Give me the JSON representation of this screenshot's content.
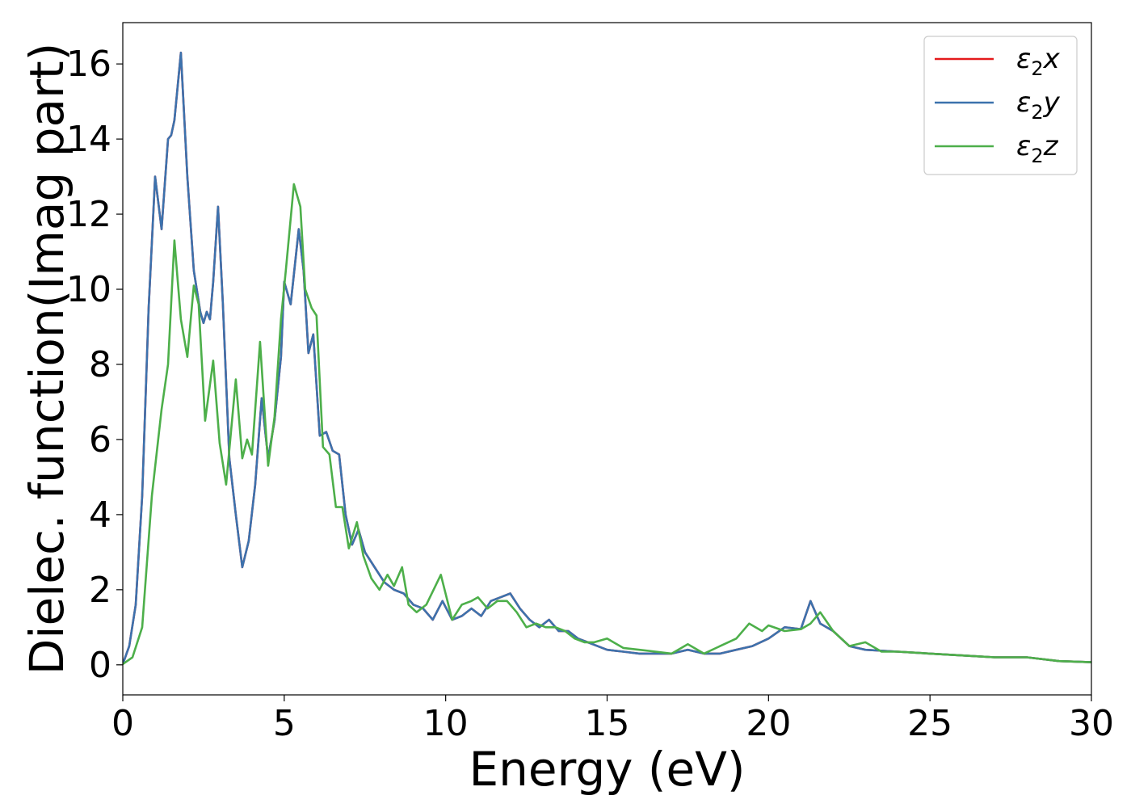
{
  "chart_data": {
    "type": "line",
    "xlabel": "Energy (eV)",
    "ylabel": "Dielec. function(Imag part)",
    "xlim": [
      0,
      30
    ],
    "ylim": [
      -0.8,
      17.1
    ],
    "xticks": [
      0,
      5,
      10,
      15,
      20,
      25,
      30
    ],
    "yticks": [
      0,
      2,
      4,
      6,
      8,
      10,
      12,
      14,
      16
    ],
    "grid": false,
    "legend_position": "top-right",
    "series": [
      {
        "name": "ε2x",
        "legend_symbol": "ε",
        "legend_sub": "2",
        "legend_var": "x",
        "color": "#e41a1c",
        "x": [
          0,
          0.2,
          0.4,
          0.6,
          0.8,
          1.0,
          1.2,
          1.4,
          1.5,
          1.6,
          1.8,
          2.0,
          2.2,
          2.4,
          2.5,
          2.6,
          2.7,
          2.8,
          2.95,
          3.1,
          3.3,
          3.5,
          3.7,
          3.9,
          4.1,
          4.3,
          4.5,
          4.7,
          4.9,
          5.0,
          5.2,
          5.45,
          5.6,
          5.75,
          5.9,
          6.1,
          6.3,
          6.5,
          6.7,
          6.9,
          7.1,
          7.3,
          7.5,
          7.8,
          8.1,
          8.4,
          8.7,
          9.0,
          9.3,
          9.6,
          9.9,
          10.2,
          10.5,
          10.8,
          11.1,
          11.4,
          11.7,
          12.0,
          12.3,
          12.6,
          12.9,
          13.2,
          13.5,
          13.8,
          14.1,
          14.4,
          14.7,
          15.0,
          15.5,
          16.0,
          16.5,
          17.0,
          17.5,
          18.0,
          18.5,
          19.0,
          19.5,
          20.0,
          20.5,
          21.0,
          21.3,
          21.6,
          22.0,
          22.5,
          23.0,
          24.0,
          25.0,
          26.0,
          27.0,
          28.0,
          29.0,
          30.0
        ],
        "y": [
          0.02,
          0.5,
          1.6,
          4.5,
          9.5,
          13.0,
          11.6,
          14.0,
          14.1,
          14.5,
          16.3,
          13.0,
          10.5,
          9.4,
          9.1,
          9.4,
          9.2,
          10.2,
          12.2,
          9.6,
          5.5,
          4.0,
          2.6,
          3.3,
          4.8,
          7.1,
          5.5,
          6.5,
          8.2,
          10.2,
          9.6,
          11.6,
          10.5,
          8.3,
          8.8,
          6.1,
          6.2,
          5.7,
          5.6,
          4.0,
          3.2,
          3.6,
          3.0,
          2.6,
          2.2,
          2.0,
          1.9,
          1.6,
          1.5,
          1.2,
          1.7,
          1.2,
          1.3,
          1.5,
          1.3,
          1.7,
          1.8,
          1.9,
          1.5,
          1.2,
          1.0,
          1.2,
          0.9,
          0.9,
          0.7,
          0.6,
          0.5,
          0.4,
          0.35,
          0.3,
          0.3,
          0.3,
          0.4,
          0.3,
          0.3,
          0.4,
          0.5,
          0.7,
          1.0,
          0.95,
          1.7,
          1.1,
          0.9,
          0.5,
          0.4,
          0.35,
          0.3,
          0.25,
          0.2,
          0.2,
          0.1,
          0.07
        ]
      },
      {
        "name": "ε2y",
        "legend_symbol": "ε",
        "legend_sub": "2",
        "legend_var": "y",
        "color": "#3c72ad",
        "x": [
          0,
          0.2,
          0.4,
          0.6,
          0.8,
          1.0,
          1.2,
          1.4,
          1.5,
          1.6,
          1.8,
          2.0,
          2.2,
          2.4,
          2.5,
          2.6,
          2.7,
          2.8,
          2.95,
          3.1,
          3.3,
          3.5,
          3.7,
          3.9,
          4.1,
          4.3,
          4.5,
          4.7,
          4.9,
          5.0,
          5.2,
          5.45,
          5.6,
          5.75,
          5.9,
          6.1,
          6.3,
          6.5,
          6.7,
          6.9,
          7.1,
          7.3,
          7.5,
          7.8,
          8.1,
          8.4,
          8.7,
          9.0,
          9.3,
          9.6,
          9.9,
          10.2,
          10.5,
          10.8,
          11.1,
          11.4,
          11.7,
          12.0,
          12.3,
          12.6,
          12.9,
          13.2,
          13.5,
          13.8,
          14.1,
          14.4,
          14.7,
          15.0,
          15.5,
          16.0,
          16.5,
          17.0,
          17.5,
          18.0,
          18.5,
          19.0,
          19.5,
          20.0,
          20.5,
          21.0,
          21.3,
          21.6,
          22.0,
          22.5,
          23.0,
          24.0,
          25.0,
          26.0,
          27.0,
          28.0,
          29.0,
          30.0
        ],
        "y": [
          0.02,
          0.5,
          1.6,
          4.5,
          9.5,
          13.0,
          11.6,
          14.0,
          14.1,
          14.5,
          16.3,
          13.0,
          10.5,
          9.4,
          9.1,
          9.4,
          9.2,
          10.2,
          12.2,
          9.6,
          5.5,
          4.0,
          2.6,
          3.3,
          4.8,
          7.1,
          5.5,
          6.5,
          8.2,
          10.2,
          9.6,
          11.6,
          10.5,
          8.3,
          8.8,
          6.1,
          6.2,
          5.7,
          5.6,
          4.0,
          3.2,
          3.6,
          3.0,
          2.6,
          2.2,
          2.0,
          1.9,
          1.6,
          1.5,
          1.2,
          1.7,
          1.2,
          1.3,
          1.5,
          1.3,
          1.7,
          1.8,
          1.9,
          1.5,
          1.2,
          1.0,
          1.2,
          0.9,
          0.9,
          0.7,
          0.6,
          0.5,
          0.4,
          0.35,
          0.3,
          0.3,
          0.3,
          0.4,
          0.3,
          0.3,
          0.4,
          0.5,
          0.7,
          1.0,
          0.95,
          1.7,
          1.1,
          0.9,
          0.5,
          0.4,
          0.35,
          0.3,
          0.25,
          0.2,
          0.2,
          0.1,
          0.07
        ]
      },
      {
        "name": "ε2z",
        "legend_symbol": "ε",
        "legend_sub": "2",
        "legend_var": "z",
        "color": "#4daf4a",
        "x": [
          0,
          0.3,
          0.6,
          0.9,
          1.2,
          1.4,
          1.6,
          1.8,
          2.0,
          2.2,
          2.35,
          2.55,
          2.8,
          3.0,
          3.2,
          3.5,
          3.7,
          3.85,
          4.0,
          4.25,
          4.5,
          4.7,
          4.9,
          5.05,
          5.3,
          5.5,
          5.65,
          5.85,
          6.0,
          6.2,
          6.4,
          6.6,
          6.8,
          7.0,
          7.25,
          7.45,
          7.7,
          7.95,
          8.2,
          8.4,
          8.65,
          8.85,
          9.1,
          9.4,
          9.85,
          10.2,
          10.5,
          10.8,
          11.0,
          11.3,
          11.6,
          11.9,
          12.2,
          12.5,
          12.8,
          13.1,
          13.4,
          13.7,
          14.0,
          14.3,
          14.6,
          15.0,
          15.5,
          16.0,
          16.5,
          17.0,
          17.5,
          18.0,
          18.5,
          19.0,
          19.4,
          19.8,
          20.0,
          20.5,
          21.0,
          21.3,
          21.6,
          22.0,
          22.5,
          23.0,
          23.5,
          24.0,
          25.0,
          26.0,
          27.0,
          28.0,
          29.0,
          30.0
        ],
        "y": [
          0.02,
          0.2,
          1.0,
          4.5,
          6.8,
          8.0,
          11.3,
          9.2,
          8.2,
          10.1,
          9.6,
          6.5,
          8.1,
          5.9,
          4.8,
          7.6,
          5.5,
          6.0,
          5.6,
          8.6,
          5.3,
          6.6,
          9.2,
          10.5,
          12.8,
          12.2,
          10.0,
          9.5,
          9.3,
          5.8,
          5.6,
          4.2,
          4.2,
          3.1,
          3.8,
          2.9,
          2.3,
          2.0,
          2.4,
          2.1,
          2.6,
          1.6,
          1.4,
          1.6,
          2.4,
          1.2,
          1.6,
          1.7,
          1.8,
          1.5,
          1.7,
          1.7,
          1.4,
          1.0,
          1.1,
          1.0,
          1.0,
          0.9,
          0.7,
          0.6,
          0.6,
          0.7,
          0.45,
          0.4,
          0.35,
          0.3,
          0.55,
          0.3,
          0.5,
          0.7,
          1.1,
          0.9,
          1.05,
          0.9,
          0.95,
          1.1,
          1.4,
          0.9,
          0.5,
          0.6,
          0.35,
          0.35,
          0.3,
          0.25,
          0.2,
          0.2,
          0.1,
          0.07
        ]
      }
    ]
  }
}
